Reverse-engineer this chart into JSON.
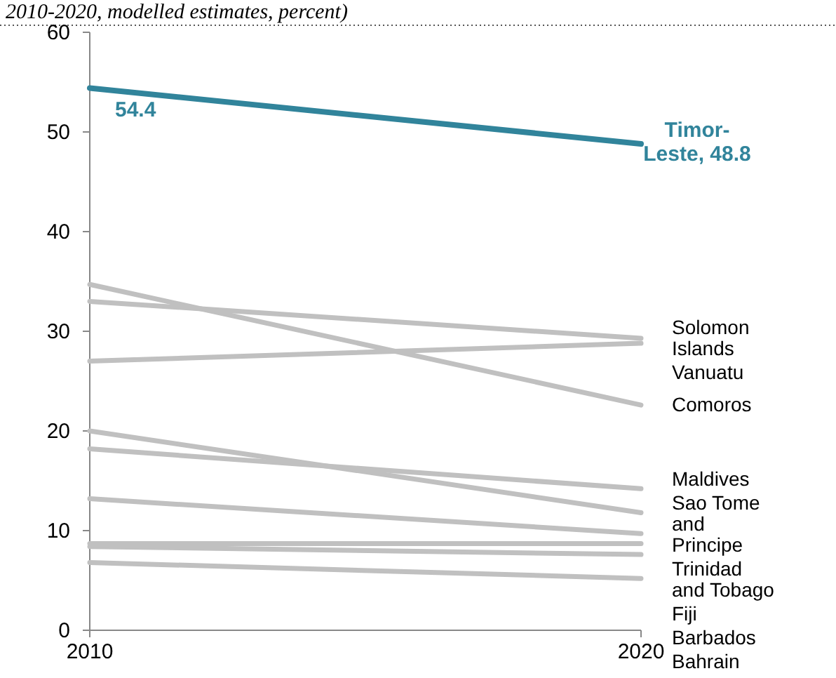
{
  "chart_data": {
    "type": "line",
    "title": "2010-2020, modelled estimates, percent)",
    "x": [
      2010,
      2020
    ],
    "xlim": [
      2010,
      2020
    ],
    "xticks": [
      2010,
      2020
    ],
    "ylim": [
      0,
      60
    ],
    "yticks": [
      0,
      10,
      20,
      30,
      40,
      50,
      60
    ],
    "grid": false,
    "marker": "none",
    "annotations": [
      {
        "text": "Timor-Leste, 48.8",
        "x": 2020,
        "y": 48.8
      }
    ],
    "line_style": "solid",
    "series": [
      {
        "color": "#31849b",
        "values": [
          54.4,
          48.8
        ],
        "value_labels": [
          "54.4",
          null
        ]
      },
      {
        "name": "Solomon Islands",
        "color": "#c0c0c0",
        "values": [
          33.0,
          29.3
        ]
      },
      {
        "name": "Vanuatu",
        "color": "#c0c0c0",
        "values": [
          27.0,
          28.8
        ]
      },
      {
        "name": "Comoros",
        "color": "#c0c0c0",
        "values": [
          34.7,
          22.6
        ]
      },
      {
        "name": "Maldives",
        "color": "#c0c0c0",
        "values": [
          18.2,
          14.2
        ]
      },
      {
        "name": "Sao Tome and Principe",
        "color": "#c0c0c0",
        "values": [
          20.0,
          11.8
        ]
      },
      {
        "name": "Trinidad and Tobago",
        "color": "#c0c0c0",
        "values": [
          13.2,
          9.7
        ]
      },
      {
        "name": "Fiji",
        "color": "#c0c0c0",
        "values": [
          8.7,
          8.7
        ]
      },
      {
        "name": "Barbados",
        "color": "#c0c0c0",
        "values": [
          8.4,
          7.6
        ]
      },
      {
        "name": "Bahrain",
        "color": "#c0c0c0",
        "values": [
          6.8,
          5.2
        ]
      }
    ]
  }
}
